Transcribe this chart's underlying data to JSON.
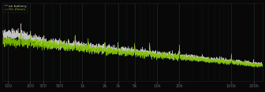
{
  "background_color": "#080808",
  "grid_color": "#1e2a1e",
  "white_trace_color": "#cccccc",
  "green_trace_color": "#80c000",
  "legend_label_battery": "on battery",
  "legend_label_mains": "On Zones",
  "legend_color_white": "#cccccc",
  "legend_color_green": "#80c000",
  "xlim_log": [
    85,
    260000
  ],
  "ylim": [
    -120,
    0
  ],
  "figsize": [
    3.36,
    1.17
  ],
  "dpi": 100,
  "xticks": [
    100,
    200,
    300,
    500,
    1000,
    2000,
    3000,
    5000,
    10000,
    20000,
    100000,
    200000
  ],
  "xlabels": [
    "100",
    "200",
    "300",
    "500",
    "1k",
    "2k",
    "3k",
    "5k",
    "10k",
    "20k",
    "100k",
    "200k"
  ]
}
